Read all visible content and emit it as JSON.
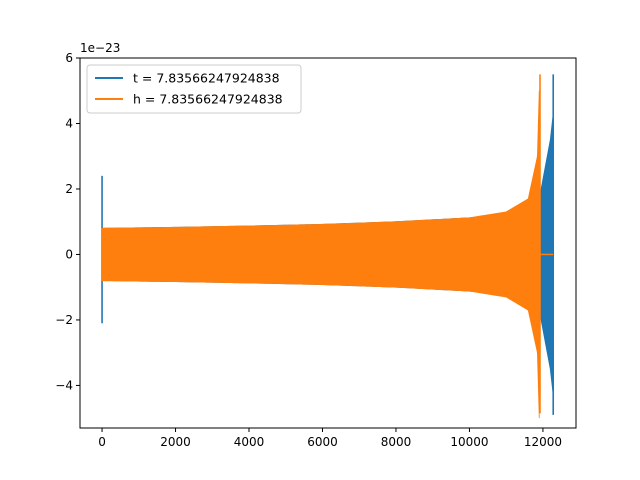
{
  "chart_data": {
    "type": "line",
    "title": "",
    "xlabel": "",
    "ylabel": "",
    "y_offset_label": "1e−23",
    "xlim": [
      -600,
      12900
    ],
    "ylim": [
      -5.3,
      6.0
    ],
    "x_ticks": [
      0,
      2000,
      4000,
      6000,
      8000,
      10000,
      12000
    ],
    "x_tick_labels": [
      "0",
      "2000",
      "4000",
      "6000",
      "8000",
      "10000",
      "12000"
    ],
    "y_ticks": [
      -4,
      -2,
      0,
      2,
      4,
      6
    ],
    "y_tick_labels": [
      "−4",
      "−2",
      "0",
      "2",
      "4",
      "6"
    ],
    "grid": false,
    "legend_position": "upper-left",
    "series": [
      {
        "name": "t = 7.83566247924838",
        "color": "#1f77b4",
        "description_points": {
          "spike_x": 0,
          "spike_range": [
            -2.1,
            2.4
          ],
          "envelope": [
            {
              "x": 0,
              "amp": 0.8
            },
            {
              "x": 2000,
              "amp": 0.83
            },
            {
              "x": 4000,
              "amp": 0.87
            },
            {
              "x": 6000,
              "amp": 0.92
            },
            {
              "x": 8000,
              "amp": 1.0
            },
            {
              "x": 10000,
              "amp": 1.12
            },
            {
              "x": 11000,
              "amp": 1.25
            },
            {
              "x": 11900,
              "amp": 1.7
            },
            {
              "x": 12200,
              "amp": 3.5
            },
            {
              "x": 12270,
              "amp": 4.2
            }
          ],
          "end_x": 12280,
          "end_range": [
            -4.9,
            5.5
          ]
        }
      },
      {
        "name": "h = 7.83566247924838",
        "color": "#ff7f0e",
        "description_points": {
          "envelope": [
            {
              "x": 0,
              "amp": 0.8
            },
            {
              "x": 2000,
              "amp": 0.83
            },
            {
              "x": 4000,
              "amp": 0.87
            },
            {
              "x": 6000,
              "amp": 0.92
            },
            {
              "x": 8000,
              "amp": 1.0
            },
            {
              "x": 10000,
              "amp": 1.12
            },
            {
              "x": 11000,
              "amp": 1.3
            },
            {
              "x": 11600,
              "amp": 1.7
            },
            {
              "x": 11850,
              "amp": 3.0
            },
            {
              "x": 11900,
              "amp": 5.0
            }
          ],
          "end_x": 11920,
          "end_range": [
            -4.85,
            5.5
          ],
          "tail": {
            "x_start": 11930,
            "x_end": 12280,
            "value": 0
          }
        }
      }
    ]
  }
}
